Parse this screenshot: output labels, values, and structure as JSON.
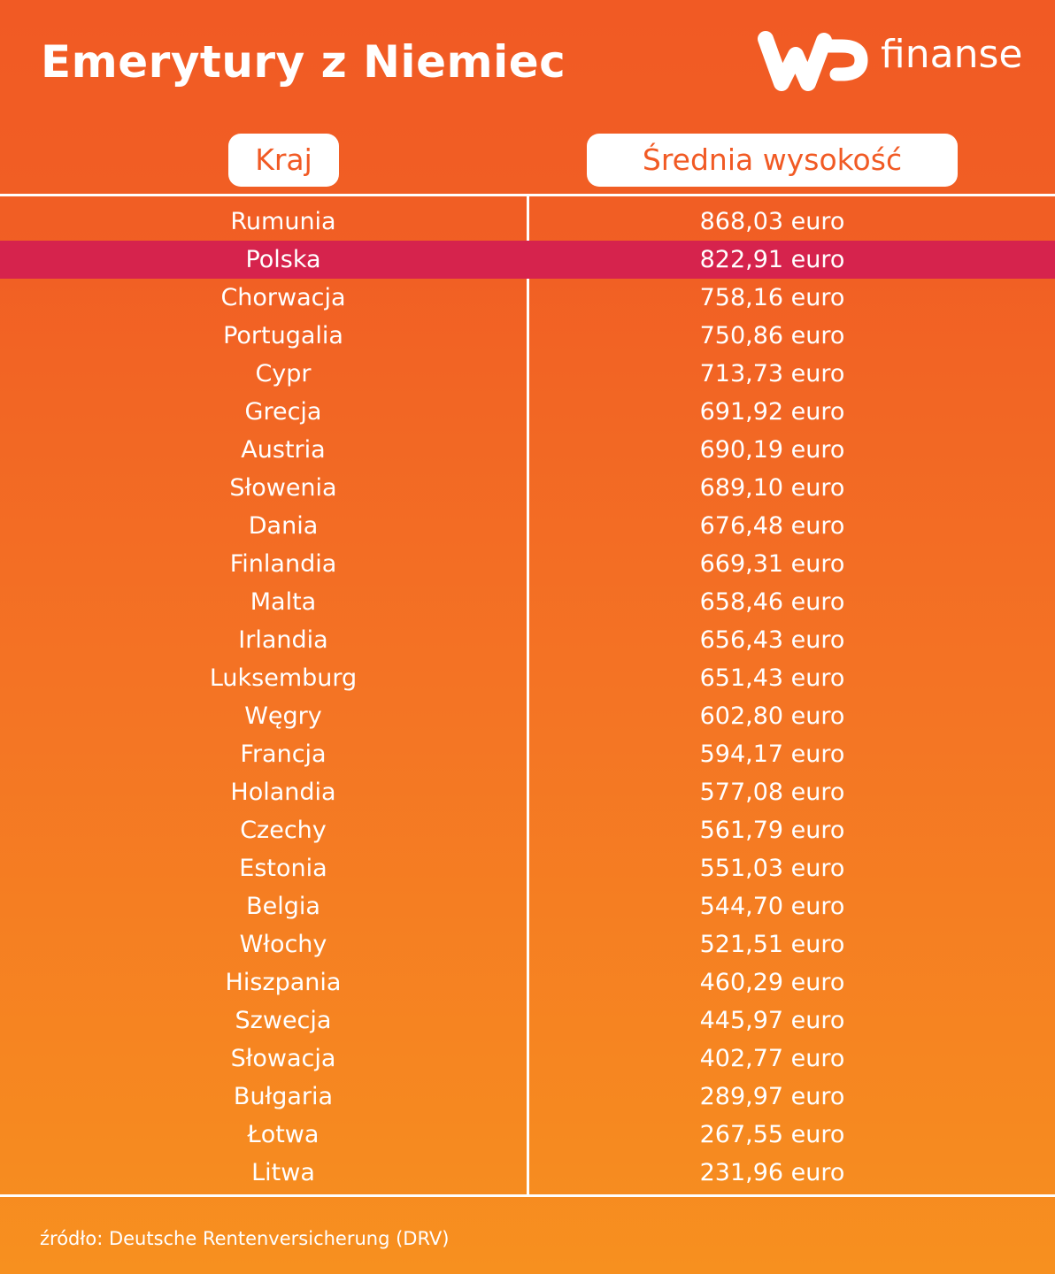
{
  "header": {
    "title": "Emerytury z Niemiec",
    "logo": {
      "mark": "WP",
      "text": "finanse",
      "icon": "wp-logo-icon"
    }
  },
  "table": {
    "columns": [
      "Kraj",
      "Średnia wysokość"
    ],
    "highlight_color": "#d6234d",
    "rows": [
      {
        "country": "Rumunia",
        "value": "868,03 euro",
        "highlight": false
      },
      {
        "country": "Polska",
        "value": "822,91 euro",
        "highlight": true
      },
      {
        "country": "Chorwacja",
        "value": "758,16 euro",
        "highlight": false
      },
      {
        "country": "Portugalia",
        "value": "750,86 euro",
        "highlight": false
      },
      {
        "country": "Cypr",
        "value": "713,73 euro",
        "highlight": false
      },
      {
        "country": "Grecja",
        "value": "691,92 euro",
        "highlight": false
      },
      {
        "country": "Austria",
        "value": "690,19 euro",
        "highlight": false
      },
      {
        "country": "Słowenia",
        "value": "689,10 euro",
        "highlight": false
      },
      {
        "country": "Dania",
        "value": "676,48 euro",
        "highlight": false
      },
      {
        "country": "Finlandia",
        "value": "669,31 euro",
        "highlight": false
      },
      {
        "country": "Malta",
        "value": "658,46 euro",
        "highlight": false
      },
      {
        "country": "Irlandia",
        "value": "656,43 euro",
        "highlight": false
      },
      {
        "country": "Luksemburg",
        "value": "651,43 euro",
        "highlight": false
      },
      {
        "country": "Węgry",
        "value": "602,80 euro",
        "highlight": false
      },
      {
        "country": "Francja",
        "value": "594,17 euro",
        "highlight": false
      },
      {
        "country": "Holandia",
        "value": "577,08 euro",
        "highlight": false
      },
      {
        "country": "Czechy",
        "value": "561,79 euro",
        "highlight": false
      },
      {
        "country": "Estonia",
        "value": "551,03 euro",
        "highlight": false
      },
      {
        "country": "Belgia",
        "value": "544,70 euro",
        "highlight": false
      },
      {
        "country": "Włochy",
        "value": "521,51 euro",
        "highlight": false
      },
      {
        "country": "Hiszpania",
        "value": "460,29 euro",
        "highlight": false
      },
      {
        "country": "Szwecja",
        "value": "445,97 euro",
        "highlight": false
      },
      {
        "country": "Słowacja",
        "value": "402,77 euro",
        "highlight": false
      },
      {
        "country": "Bułgaria",
        "value": "289,97 euro",
        "highlight": false
      },
      {
        "country": "Łotwa",
        "value": "267,55 euro",
        "highlight": false
      },
      {
        "country": "Litwa",
        "value": "231,96 euro",
        "highlight": false
      }
    ]
  },
  "footer": {
    "source": "źródło: Deutsche Rentenversicherung (DRV)"
  },
  "colors": {
    "background_top": "#f15a24",
    "background_bottom": "#f7901f",
    "text": "#ffffff"
  }
}
